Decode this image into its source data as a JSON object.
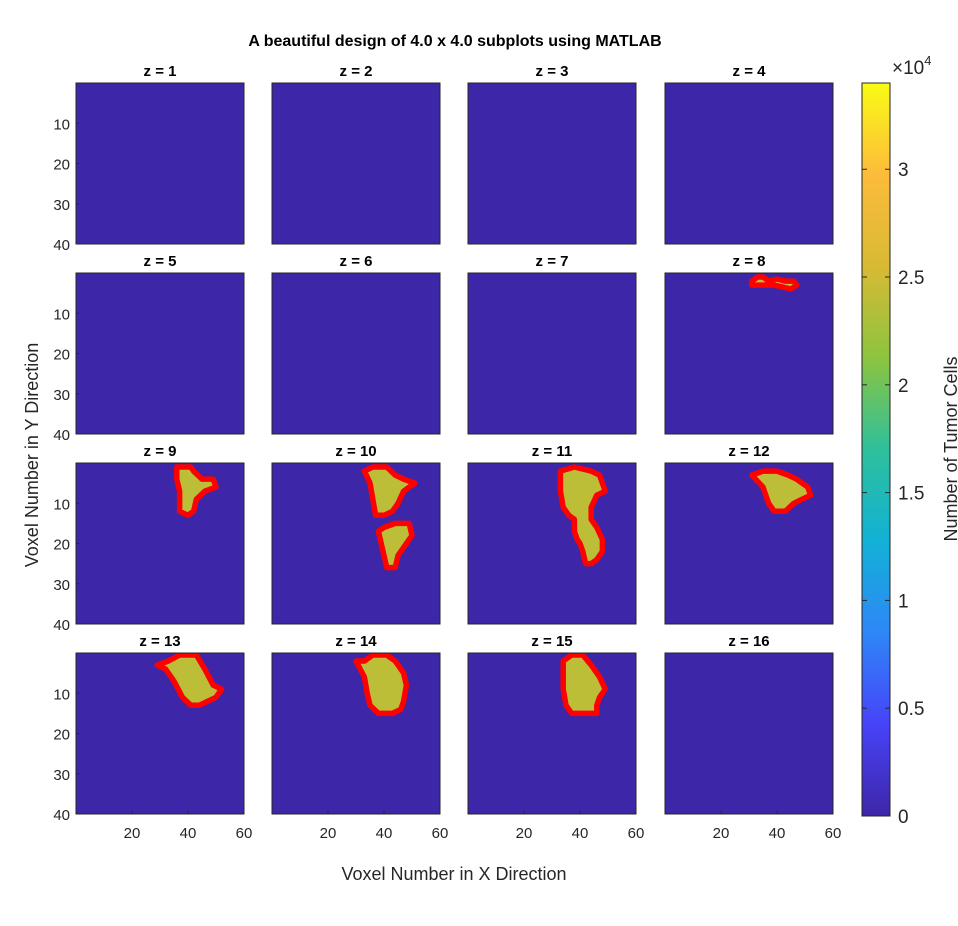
{
  "chart_data": {
    "type": "heatmap",
    "title": "A beautiful design of 4.0 x 4.0 subplots using MATLAB",
    "xlabel": "Voxel Number in X Direction",
    "ylabel": "Voxel Number in Y Direction",
    "colorbar_label": "Number of Tumor Cells",
    "colorbar_exponent": "×10",
    "colorbar_exponent_power": "4",
    "colorbar_ticks": [
      {
        "value": 0,
        "label": "0"
      },
      {
        "value": 0.5,
        "label": "0.5"
      },
      {
        "value": 1,
        "label": "1"
      },
      {
        "value": 1.5,
        "label": "1.5"
      },
      {
        "value": 2,
        "label": "2"
      },
      {
        "value": 2.5,
        "label": "2.5"
      },
      {
        "value": 3,
        "label": "3"
      }
    ],
    "colorbar_range": [
      0,
      3.4
    ],
    "colormap": [
      "#3e26a8",
      "#4743f8",
      "#2e87f7",
      "#12b1d6",
      "#2ec09b",
      "#8cc43f",
      "#d8ba34",
      "#fdbb3b",
      "#f9fb15"
    ],
    "x_range": [
      0,
      60
    ],
    "y_range": [
      0,
      40
    ],
    "x_ticks": [
      "20",
      "40",
      "60"
    ],
    "y_ticks": [
      "10",
      "20",
      "30",
      "40"
    ],
    "background_color": "#3e26a8",
    "tumor_fill_color": "#c2c23a",
    "boundary_color": "#ff0000",
    "grid": false,
    "legend": "none",
    "subplots": [
      {
        "title": "z = 1",
        "regions": []
      },
      {
        "title": "z = 2",
        "regions": []
      },
      {
        "title": "z = 3",
        "regions": []
      },
      {
        "title": "z = 4",
        "regions": []
      },
      {
        "title": "z = 5",
        "regions": []
      },
      {
        "title": "z = 6",
        "regions": []
      },
      {
        "title": "z = 7",
        "regions": []
      },
      {
        "title": "z = 8",
        "regions": [
          {
            "value": 2.4,
            "points": [
              [
                31,
                2
              ],
              [
                33,
                1
              ],
              [
                35,
                1
              ],
              [
                37,
                2
              ],
              [
                40,
                1.5
              ],
              [
                43,
                2
              ],
              [
                46,
                2
              ],
              [
                47,
                3
              ],
              [
                45,
                4
              ],
              [
                42,
                3.5
              ],
              [
                39,
                3
              ],
              [
                36,
                3
              ],
              [
                33,
                3
              ],
              [
                31,
                3
              ]
            ]
          }
        ]
      },
      {
        "title": "z = 9",
        "regions": [
          {
            "value": 2.4,
            "points": [
              [
                36,
                1
              ],
              [
                41,
                1
              ],
              [
                42,
                2
              ],
              [
                45,
                4
              ],
              [
                49,
                4
              ],
              [
                50,
                6
              ],
              [
                46,
                7
              ],
              [
                43,
                9
              ],
              [
                42,
                12
              ],
              [
                40,
                13
              ],
              [
                37,
                12
              ],
              [
                37,
                7
              ],
              [
                36,
                4
              ]
            ]
          }
        ]
      },
      {
        "title": "z = 10",
        "regions": [
          {
            "value": 2.4,
            "points": [
              [
                33,
                2
              ],
              [
                36,
                1
              ],
              [
                41,
                1
              ],
              [
                44,
                3
              ],
              [
                47,
                4
              ],
              [
                51,
                5
              ],
              [
                47,
                7
              ],
              [
                45,
                10
              ],
              [
                43,
                12
              ],
              [
                40,
                13
              ],
              [
                37,
                13
              ],
              [
                36,
                9
              ],
              [
                35,
                5
              ]
            ]
          },
          {
            "value": 2.4,
            "points": [
              [
                38,
                17
              ],
              [
                40,
                16
              ],
              [
                44,
                15
              ],
              [
                49,
                15
              ],
              [
                50,
                18
              ],
              [
                47,
                21
              ],
              [
                45,
                23
              ],
              [
                44,
                26
              ],
              [
                41,
                26
              ],
              [
                40,
                23
              ],
              [
                39,
                20
              ]
            ]
          }
        ]
      },
      {
        "title": "z = 11",
        "regions": [
          {
            "value": 2.4,
            "points": [
              [
                33,
                2
              ],
              [
                38,
                1
              ],
              [
                44,
                2
              ],
              [
                47,
                3
              ],
              [
                49,
                7
              ],
              [
                46,
                8
              ],
              [
                44,
                11
              ],
              [
                44,
                14
              ],
              [
                46,
                16
              ],
              [
                48,
                19
              ],
              [
                48,
                22
              ],
              [
                46,
                24
              ],
              [
                44,
                25
              ],
              [
                42,
                25
              ],
              [
                41,
                22
              ],
              [
                40,
                20
              ],
              [
                39,
                19
              ],
              [
                38,
                17
              ],
              [
                38,
                14
              ],
              [
                36,
                13
              ],
              [
                34,
                11
              ],
              [
                33,
                7
              ]
            ]
          }
        ]
      },
      {
        "title": "z = 12",
        "regions": [
          {
            "value": 2.4,
            "points": [
              [
                31,
                3
              ],
              [
                35,
                2
              ],
              [
                40,
                2
              ],
              [
                44,
                3
              ],
              [
                47,
                4
              ],
              [
                51,
                6
              ],
              [
                52,
                8
              ],
              [
                49,
                9
              ],
              [
                46,
                10
              ],
              [
                43,
                12
              ],
              [
                39,
                12
              ],
              [
                37,
                10
              ],
              [
                35,
                6
              ]
            ]
          }
        ]
      },
      {
        "title": "z = 13",
        "regions": [
          {
            "value": 2.4,
            "points": [
              [
                29,
                3
              ],
              [
                33,
                2
              ],
              [
                37,
                0.5
              ],
              [
                43,
                0.5
              ],
              [
                46,
                4
              ],
              [
                49,
                8
              ],
              [
                52,
                9
              ],
              [
                50,
                11
              ],
              [
                47,
                12
              ],
              [
                44,
                13
              ],
              [
                41,
                13
              ],
              [
                38,
                11
              ],
              [
                35,
                7
              ],
              [
                32,
                4
              ]
            ]
          }
        ]
      },
      {
        "title": "z = 14",
        "regions": [
          {
            "value": 2.4,
            "points": [
              [
                30,
                2
              ],
              [
                33,
                2
              ],
              [
                36,
                0.5
              ],
              [
                41,
                0.5
              ],
              [
                44,
                2
              ],
              [
                47,
                5
              ],
              [
                48,
                8
              ],
              [
                47,
                12
              ],
              [
                46,
                14
              ],
              [
                43,
                15
              ],
              [
                38,
                15
              ],
              [
                35,
                13
              ],
              [
                34,
                10
              ],
              [
                33,
                6
              ]
            ]
          }
        ]
      },
      {
        "title": "z = 15",
        "regions": [
          {
            "value": 2.4,
            "points": [
              [
                34,
                2
              ],
              [
                37,
                0.5
              ],
              [
                41,
                0.5
              ],
              [
                44,
                3
              ],
              [
                47,
                6
              ],
              [
                49,
                9
              ],
              [
                47,
                11
              ],
              [
                46,
                13
              ],
              [
                46,
                15
              ],
              [
                42,
                15
              ],
              [
                37,
                15
              ],
              [
                35,
                13
              ],
              [
                34,
                9
              ],
              [
                34,
                5
              ]
            ]
          }
        ]
      },
      {
        "title": "z = 16",
        "regions": []
      }
    ]
  }
}
